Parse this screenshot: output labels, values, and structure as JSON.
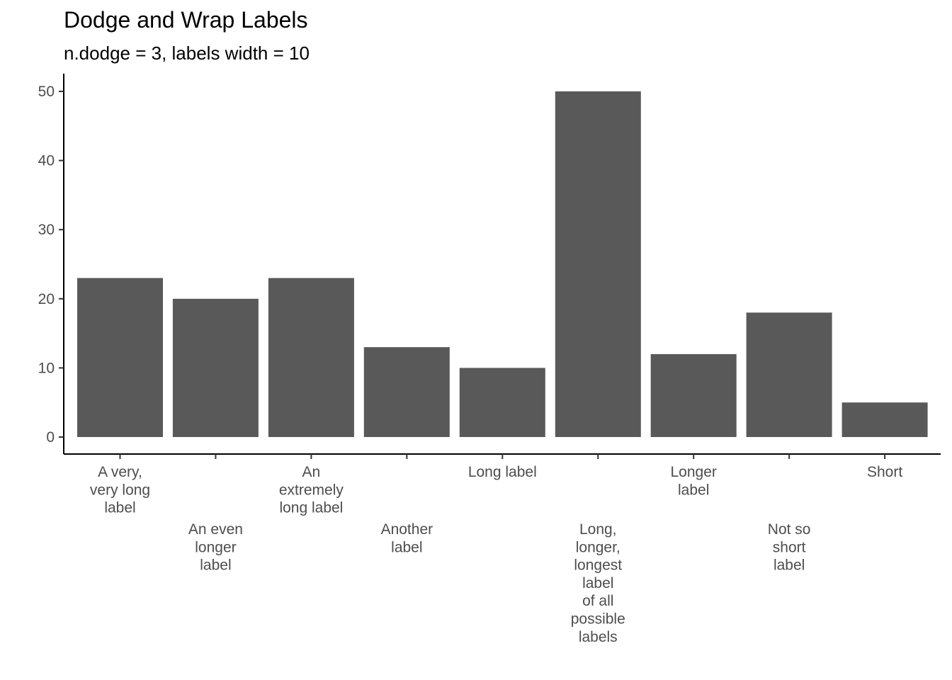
{
  "chart_data": {
    "type": "bar",
    "title": "Dodge and Wrap Labels",
    "subtitle": "n.dodge = 3, labels width = 10",
    "xlabel": "",
    "ylabel": "",
    "categories": [
      "A very, very long label",
      "An even longer label",
      "An extremely long label",
      "Another label",
      "Long label",
      "Long, longer, longest label of all possible labels",
      "Longer label",
      "Not so short label",
      "Short"
    ],
    "wrapped_labels": [
      [
        "A very,",
        "very long",
        "label"
      ],
      [
        "An even",
        "longer",
        "label"
      ],
      [
        "An",
        "extremely",
        "long label"
      ],
      [
        "Another",
        "label"
      ],
      [
        "Long label"
      ],
      [
        "Long,",
        "longer,",
        "longest",
        "label",
        "of all",
        "possible",
        "labels"
      ],
      [
        "Longer",
        "label"
      ],
      [
        "Not so",
        "short",
        "label"
      ],
      [
        "Short"
      ]
    ],
    "label_rows": [
      0,
      1,
      0,
      1,
      0,
      1,
      0,
      1,
      0
    ],
    "values": [
      23,
      20,
      23,
      13,
      10,
      50,
      12,
      18,
      5
    ],
    "ylim": [
      0,
      52.5
    ],
    "yticks": [
      0,
      10,
      20,
      30,
      40,
      50
    ],
    "grid": false,
    "bar_color": "#595959"
  }
}
